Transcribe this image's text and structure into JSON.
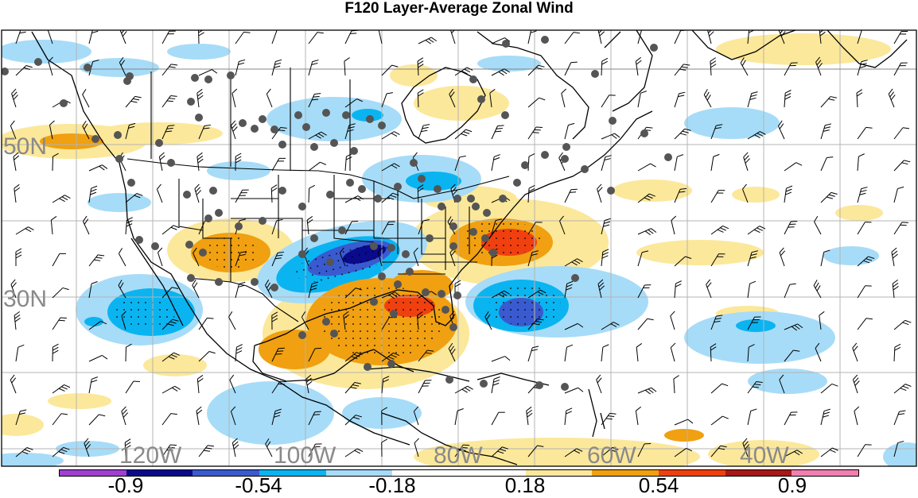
{
  "title": "F120 Layer-Average Zonal Wind",
  "map": {
    "latitude_labels": [
      "50N",
      "30N"
    ],
    "longitude_labels": [
      "120W",
      "100W",
      "80W",
      "60W",
      "40W"
    ]
  },
  "colorbar": {
    "colors": [
      "#a040d0",
      "#0a0a8c",
      "#3a5ad0",
      "#0ab4f0",
      "#a6dcf8",
      "#ffffff",
      "#ffffff",
      "#fce89a",
      "#f0a010",
      "#f04010",
      "#a81818",
      "#f080b0"
    ],
    "tick_labels": [
      "-0.9",
      "-0.54",
      "-0.18",
      "0.18",
      "0.54",
      "0.9"
    ]
  },
  "colors": {
    "positive_weak": "#fce89a",
    "positive_moderate": "#f0a010",
    "positive_strong": "#f04010",
    "negative_weak": "#a6dcf8",
    "negative_moderate": "#0ab4f0",
    "negative_strong": "#3a5ad0",
    "negative_extreme": "#0a0a8c",
    "station_marker": "#555555",
    "gridline": "#b4b4b4"
  }
}
